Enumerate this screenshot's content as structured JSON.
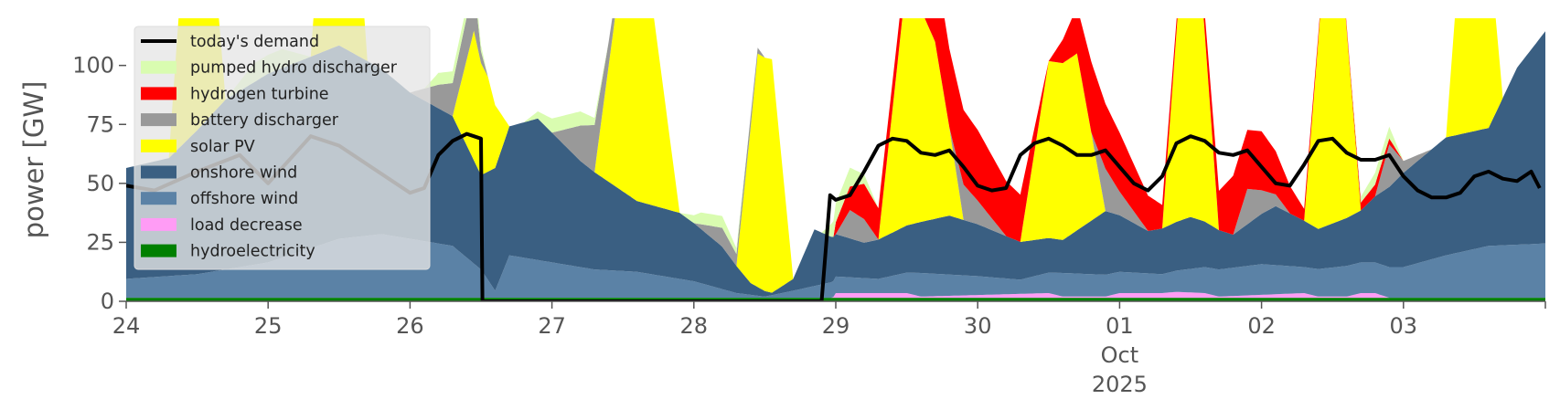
{
  "chart_data": {
    "type": "area",
    "ylabel": "power [GW]",
    "ylim": [
      0,
      120
    ],
    "grid": false,
    "legend_placement": "top-left",
    "x_tick_labels": [
      "24",
      "25",
      "26",
      "27",
      "28",
      "29",
      "30",
      "01",
      "02",
      "03"
    ],
    "x_tick_dates": [
      "2025-09-24",
      "2025-09-25",
      "2025-09-26",
      "2025-09-27",
      "2025-09-28",
      "2025-09-29",
      "2025-09-30",
      "2025-10-01",
      "2025-10-02",
      "2025-10-03"
    ],
    "x_month_label": "Oct",
    "x_year_label": "2025",
    "xlim": [
      "2025-09-24",
      "2025-10-04"
    ],
    "y_ticks": [
      0,
      25,
      50,
      75,
      100
    ],
    "demand": {
      "name": "today's demand",
      "color": "#000000",
      "x": [
        0,
        0.2,
        0.5,
        0.8,
        1.0,
        1.3,
        1.5,
        1.7,
        2.0,
        2.1,
        2.2,
        2.3,
        2.4,
        2.45,
        2.5,
        2.51,
        2.55,
        4.9,
        4.96,
        5.0,
        5.1,
        5.2,
        5.3,
        5.4,
        5.5,
        5.6,
        5.7,
        5.8,
        5.9,
        6.0,
        6.1,
        6.2,
        6.3,
        6.4,
        6.5,
        6.6,
        6.7,
        6.8,
        6.9,
        7.0,
        7.1,
        7.2,
        7.3,
        7.4,
        7.5,
        7.6,
        7.7,
        7.8,
        7.9,
        8.0,
        8.1,
        8.2,
        8.3,
        8.4,
        8.5,
        8.6,
        8.7,
        8.8,
        8.9,
        9.0,
        9.1,
        9.2,
        9.3,
        9.4,
        9.5,
        9.6,
        9.7,
        9.8,
        9.9,
        9.96
      ],
      "y": [
        49,
        47,
        55,
        62,
        50,
        70,
        66,
        58,
        46,
        48,
        62,
        68,
        71,
        70,
        69,
        0,
        0,
        0,
        45,
        43,
        45,
        55,
        66,
        69,
        68,
        63,
        62,
        64,
        57,
        49,
        47,
        48,
        62,
        67,
        69,
        66,
        62,
        62,
        64,
        57,
        50,
        47,
        53,
        67,
        70,
        68,
        63,
        62,
        64,
        57,
        50,
        49,
        58,
        68,
        69,
        63,
        60,
        60,
        62,
        53,
        47,
        44,
        44,
        46,
        53,
        55,
        52,
        51,
        55,
        48
      ]
    },
    "series": [
      {
        "name": "hydroelectricity",
        "color": "#008000",
        "x": [
          0,
          10
        ],
        "values": [
          1.5,
          1.5
        ]
      },
      {
        "name": "load decrease",
        "color": "#ff9cf5",
        "x": [
          0,
          4.98,
          5.0,
          5.5,
          5.6,
          6.5,
          6.6,
          6.9,
          7.0,
          7.3,
          7.4,
          7.6,
          7.7,
          8.3,
          8.4,
          8.6,
          8.7,
          8.8,
          8.9,
          10
        ],
        "values": [
          0,
          0,
          2,
          2,
          0.5,
          2,
          0.5,
          0.5,
          2,
          2,
          2.5,
          2,
          0.5,
          2,
          0.5,
          0.5,
          2,
          2,
          0,
          0
        ]
      },
      {
        "name": "offshore wind",
        "color": "#5b82a6",
        "x": [
          0,
          0.5,
          1.0,
          1.5,
          1.8,
          2.0,
          2.3,
          2.5,
          2.6,
          2.7,
          3.0,
          3.3,
          3.6,
          4.0,
          4.3,
          4.5,
          4.7,
          5.0,
          5.3,
          5.6,
          6.0,
          6.3,
          6.6,
          7.0,
          7.3,
          7.6,
          8.0,
          8.3,
          8.6,
          9.0,
          9.3,
          9.6,
          10
        ],
        "values": [
          8,
          10,
          15,
          25,
          27,
          25,
          22,
          12,
          3,
          18,
          15,
          12,
          11,
          7,
          2,
          0.5,
          3,
          7,
          6,
          10,
          8,
          6,
          10,
          9,
          8,
          11,
          13,
          11,
          13,
          13,
          18,
          22,
          23
        ]
      },
      {
        "name": "onshore wind",
        "color": "#3a5f82",
        "x": [
          0,
          0.3,
          0.7,
          1.0,
          1.5,
          2.0,
          2.3,
          2.5,
          2.6,
          2.9,
          3.2,
          3.6,
          3.9,
          4.2,
          4.4,
          4.55,
          4.7,
          4.85,
          5.0,
          5.2,
          5.5,
          5.8,
          6.0,
          6.3,
          6.6,
          6.9,
          7.2,
          7.5,
          7.8,
          8.1,
          8.4,
          8.7,
          9.0,
          9.3,
          9.6,
          9.8,
          10
        ],
        "values": [
          47,
          50,
          72,
          80,
          82,
          62,
          55,
          40,
          52,
          60,
          45,
          30,
          28,
          18,
          5,
          1,
          5,
          24,
          18,
          15,
          20,
          25,
          22,
          16,
          14,
          27,
          18,
          22,
          14,
          25,
          17,
          22,
          40,
          50,
          50,
          75,
          90
        ]
      },
      {
        "name": "solar PV",
        "color": "#ffff00",
        "x": [
          0,
          0.3,
          0.45,
          0.55,
          0.7,
          0.9,
          1.0,
          1.3,
          1.45,
          1.55,
          1.7,
          1.9,
          2.0,
          2.3,
          2.45,
          2.55,
          2.7,
          2.8,
          3.0,
          3.3,
          3.5,
          3.7,
          3.9,
          4.0,
          4.3,
          4.45,
          4.55,
          4.7,
          4.8,
          5.0,
          5.3,
          5.5,
          5.7,
          5.9,
          6.0,
          6.3,
          6.5,
          6.7,
          6.9,
          7.0,
          7.3,
          7.45,
          7.55,
          7.7,
          7.9,
          8.0,
          8.3,
          8.45,
          8.55,
          8.7,
          8.9,
          9.0,
          9.3,
          9.45,
          9.55,
          9.7,
          9.9,
          10
        ],
        "values": [
          0,
          0,
          120,
          120,
          0,
          0,
          0,
          0,
          120,
          120,
          0,
          0,
          0,
          0,
          55,
          40,
          0,
          0,
          0,
          0,
          99,
          88,
          0,
          0,
          0,
          99,
          99,
          0,
          0,
          0,
          0,
          105,
          75,
          0,
          0,
          0,
          75,
          75,
          0,
          0,
          0,
          120,
          120,
          0,
          0,
          0,
          0,
          120,
          120,
          0,
          0,
          0,
          0,
          120,
          120,
          0,
          0,
          0
        ]
      },
      {
        "name": "battery discharger",
        "color": "#999999",
        "x": [
          0,
          0.6,
          0.9,
          1.2,
          1.5,
          1.8,
          2.0,
          2.2,
          2.4,
          2.45,
          2.5,
          2.55,
          3.0,
          3.2,
          3.3,
          3.4,
          3.6,
          4.0,
          4.2,
          4.3,
          4.4,
          4.5,
          4.8,
          5.0,
          5.1,
          5.2,
          5.3,
          5.5,
          5.8,
          5.9,
          6.0,
          6.2,
          6.5,
          6.8,
          6.9,
          7.0,
          7.2,
          7.5,
          7.8,
          7.9,
          8.0,
          8.2,
          8.5,
          8.8,
          8.9,
          9.0,
          9.2,
          10
        ],
        "values": [
          0,
          0,
          0,
          0,
          0,
          0,
          0,
          10,
          18,
          20,
          5,
          0,
          0,
          15,
          20,
          10,
          0,
          0,
          8,
          5,
          5,
          0,
          0,
          0,
          12,
          10,
          0,
          0,
          0,
          15,
          10,
          0,
          0,
          0,
          18,
          10,
          0,
          0,
          0,
          15,
          10,
          0,
          0,
          0,
          18,
          5,
          0,
          0
        ]
      },
      {
        "name": "hydrogen turbine",
        "color": "#ff0000",
        "x": [
          0,
          4.99,
          5.0,
          5.2,
          5.5,
          5.7,
          6.0,
          6.3,
          6.5,
          6.8,
          7.0,
          7.3,
          7.5,
          7.8,
          8.0,
          8.3,
          8.5,
          8.8,
          9.0,
          10
        ],
        "values": [
          0,
          0,
          5,
          15,
          10,
          35,
          30,
          20,
          0,
          30,
          25,
          10,
          0,
          25,
          25,
          5,
          0,
          5,
          0,
          0
        ]
      },
      {
        "name": "pumped hydro discharger",
        "color": "#d9fcb0",
        "x": [
          0,
          0.7,
          0.9,
          1.1,
          1.3,
          2.1,
          2.2,
          2.35,
          2.45,
          2.55,
          2.8,
          3.0,
          3.2,
          3.4,
          3.6,
          3.9,
          4.05,
          4.2,
          4.4,
          4.9,
          5.0,
          5.1,
          5.3,
          8.6,
          8.8,
          8.9,
          9.0,
          10
        ],
        "values": [
          0,
          0,
          8,
          8,
          0,
          0,
          5,
          5,
          5,
          0,
          0,
          6,
          6,
          0,
          0,
          0,
          5,
          5,
          0,
          0,
          8,
          8,
          0,
          0,
          5,
          5,
          0,
          0
        ]
      }
    ],
    "legend": [
      {
        "label": "today's demand",
        "kind": "line",
        "color": "#000000"
      },
      {
        "label": "pumped hydro discharger",
        "kind": "patch",
        "color": "#d9fcb0"
      },
      {
        "label": "hydrogen turbine",
        "kind": "patch",
        "color": "#ff0000"
      },
      {
        "label": "battery discharger",
        "kind": "patch",
        "color": "#999999"
      },
      {
        "label": "solar PV",
        "kind": "patch",
        "color": "#ffff00"
      },
      {
        "label": "onshore wind",
        "kind": "patch",
        "color": "#3a5f82"
      },
      {
        "label": "offshore wind",
        "kind": "patch",
        "color": "#5b82a6"
      },
      {
        "label": "load decrease",
        "kind": "patch",
        "color": "#ff9cf5"
      },
      {
        "label": "hydroelectricity",
        "kind": "patch",
        "color": "#008000"
      }
    ]
  }
}
